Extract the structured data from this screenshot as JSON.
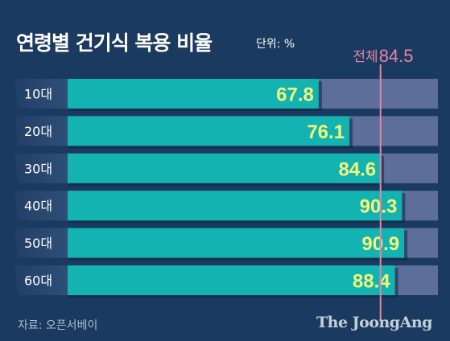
{
  "title": "연령별 건기식 복용 비율",
  "unit": "단위: %",
  "source": "자료: 오픈서베이",
  "brand": "The JoongAng",
  "colors": {
    "background": "#1b3a5f",
    "bar": "#12b3b1",
    "track": "#5d6e9b",
    "value_text": "#f5f57a",
    "reference_line": "#e585a6"
  },
  "chart_data": {
    "type": "bar",
    "orientation": "horizontal",
    "categories": [
      "10대",
      "20대",
      "30대",
      "40대",
      "50대",
      "60대"
    ],
    "values": [
      67.8,
      76.1,
      84.6,
      90.3,
      90.9,
      88.4
    ],
    "reference": {
      "label": "전체",
      "value_label": "84.5",
      "value": 84.5
    },
    "xlim": [
      0,
      100
    ],
    "grid": false,
    "legend": "none"
  }
}
